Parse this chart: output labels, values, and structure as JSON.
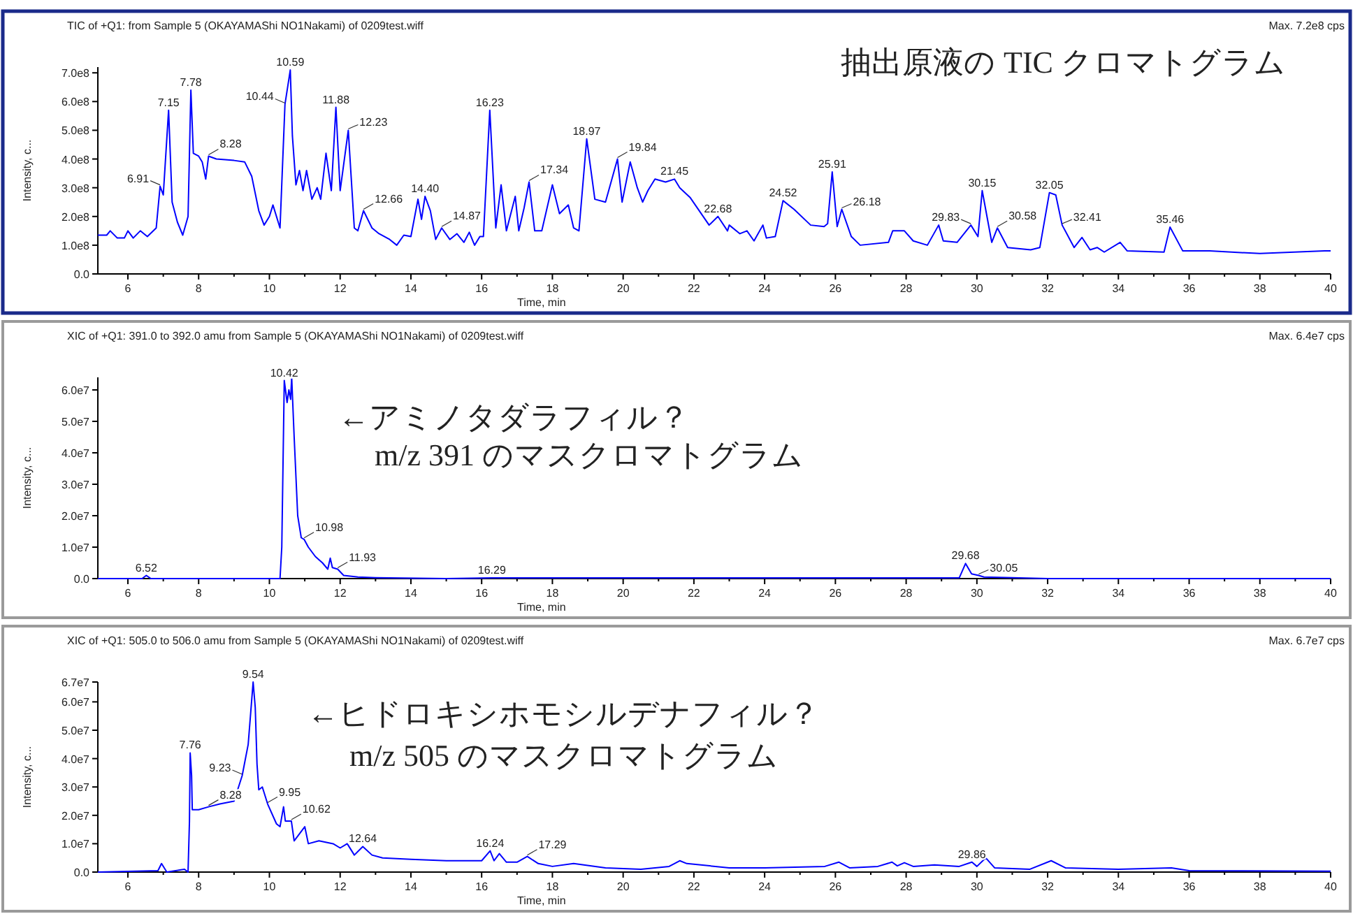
{
  "chart_data": [
    {
      "type": "line",
      "title": "TIC of +Q1: from Sample 5 (OKAYAMAShi NO1Nakami) of 0209test.wiff",
      "subtitle": "Max. 7.2e8 cps",
      "xlabel": "Time, min",
      "ylabel": "Intensity, c...",
      "xlim": [
        5.15,
        40
      ],
      "ylim": [
        0,
        720000000.0
      ],
      "xticks": [
        6,
        {
          "value": 7,
          "label": null
        },
        8,
        {
          "value": 9,
          "label": null
        },
        10,
        {
          "value": 11,
          "label": null
        },
        12,
        {
          "value": 13,
          "label": null
        },
        14,
        {
          "value": 15,
          "label": null
        },
        16,
        {
          "value": 17,
          "label": null
        },
        18,
        {
          "value": 19,
          "label": null
        },
        20,
        {
          "value": 21,
          "label": null
        },
        22,
        {
          "value": 23,
          "label": null
        },
        24,
        {
          "value": 25,
          "label": null
        },
        26,
        {
          "value": 27,
          "label": null
        },
        28,
        {
          "value": 29,
          "label": null
        },
        30,
        {
          "value": 31,
          "label": null
        },
        32,
        {
          "value": 33,
          "label": null
        },
        34,
        {
          "value": 35,
          "label": null
        },
        36,
        {
          "value": 37,
          "label": null
        },
        38,
        {
          "value": 39,
          "label": null
        },
        40
      ],
      "yticks": [
        {
          "value": 0,
          "label": "0.0"
        },
        {
          "value": 100000000.0,
          "label": "1.0e8"
        },
        {
          "value": 200000000.0,
          "label": "2.0e8"
        },
        {
          "value": 300000000.0,
          "label": "3.0e8"
        },
        {
          "value": 400000000.0,
          "label": "4.0e8"
        },
        {
          "value": 500000000.0,
          "label": "5.0e8"
        },
        {
          "value": 600000000.0,
          "label": "6.0e8"
        },
        {
          "value": 700000000.0,
          "label": "7.0e8"
        }
      ],
      "annotations": [
        "抽出原液の TIC クロマトグラム",
        {
          "text": "6.91",
          "x": 6.91,
          "y": 305000000.0
        },
        {
          "text": "7.15",
          "x": 7.15,
          "y": 570000000.0
        },
        {
          "text": "7.78",
          "x": 7.78,
          "y": 640000000.0
        },
        {
          "text": "8.28",
          "x": 8.28,
          "y": 410000000.0
        },
        {
          "text": "10.44",
          "x": 10.44,
          "y": 590000000.0
        },
        {
          "text": "10.59",
          "x": 10.59,
          "y": 710000000.0
        },
        {
          "text": "11.88",
          "x": 11.88,
          "y": 580000000.0
        },
        {
          "text": "12.23",
          "x": 12.23,
          "y": 500000000.0
        },
        {
          "text": "12.66",
          "x": 12.66,
          "y": 220000000.0
        },
        {
          "text": "14.40",
          "x": 14.4,
          "y": 270000000.0
        },
        {
          "text": "14.87",
          "x": 14.87,
          "y": 160000000.0
        },
        {
          "text": "16.23",
          "x": 16.23,
          "y": 570000000.0
        },
        {
          "text": "17.34",
          "x": 17.34,
          "y": 320000000.0
        },
        {
          "text": "18.97",
          "x": 18.97,
          "y": 470000000.0
        },
        {
          "text": "19.84",
          "x": 19.84,
          "y": 400000000.0
        },
        {
          "text": "21.45",
          "x": 21.45,
          "y": 330000000.0
        },
        {
          "text": "22.68",
          "x": 22.68,
          "y": 200000000.0
        },
        {
          "text": "24.52",
          "x": 24.52,
          "y": 255000000.0
        },
        {
          "text": "25.91",
          "x": 25.91,
          "y": 355000000.0
        },
        {
          "text": "26.18",
          "x": 26.18,
          "y": 225000000.0
        },
        {
          "text": "29.83",
          "x": 29.83,
          "y": 170000000.0
        },
        {
          "text": "30.15",
          "x": 30.15,
          "y": 290000000.0
        },
        {
          "text": "30.58",
          "x": 30.58,
          "y": 160000000.0
        },
        {
          "text": "32.05",
          "x": 32.05,
          "y": 283000000.0
        },
        {
          "text": "32.41",
          "x": 32.41,
          "y": 170000000.0
        },
        {
          "text": "35.46",
          "x": 35.46,
          "y": 163000000.0
        }
      ],
      "series": [
        {
          "color": "#0000ff",
          "x": [
            5.15,
            5.4,
            5.5,
            5.7,
            5.9,
            6.0,
            6.15,
            6.35,
            6.55,
            6.8,
            6.91,
            7.0,
            7.15,
            7.25,
            7.4,
            7.55,
            7.7,
            7.78,
            7.85,
            8.0,
            8.1,
            8.2,
            8.28,
            8.5,
            9.0,
            9.3,
            9.5,
            9.7,
            9.85,
            10.0,
            10.1,
            10.3,
            10.44,
            10.59,
            10.65,
            10.75,
            10.85,
            10.95,
            11.05,
            11.2,
            11.35,
            11.45,
            11.6,
            11.75,
            11.88,
            12.0,
            12.23,
            12.4,
            12.5,
            12.66,
            12.9,
            13.1,
            13.4,
            13.6,
            13.8,
            14.0,
            14.2,
            14.3,
            14.4,
            14.55,
            14.7,
            14.87,
            15.1,
            15.3,
            15.5,
            15.65,
            15.8,
            15.95,
            16.05,
            16.23,
            16.4,
            16.55,
            16.7,
            16.95,
            17.05,
            17.2,
            17.34,
            17.5,
            17.7,
            18.0,
            18.2,
            18.45,
            18.6,
            18.75,
            18.97,
            19.2,
            19.5,
            19.84,
            19.97,
            20.2,
            20.4,
            20.55,
            20.7,
            20.9,
            21.2,
            21.45,
            21.6,
            21.9,
            22.43,
            22.68,
            22.95,
            23.0,
            23.3,
            23.5,
            23.7,
            23.95,
            24.05,
            24.3,
            24.52,
            24.83,
            25.3,
            25.68,
            25.78,
            25.91,
            26.05,
            26.18,
            26.45,
            26.7,
            27.5,
            27.62,
            27.95,
            28.2,
            28.6,
            28.92,
            29.05,
            29.44,
            29.83,
            30.03,
            30.15,
            30.42,
            30.58,
            30.87,
            31.52,
            31.78,
            32.05,
            32.23,
            32.41,
            32.75,
            32.97,
            33.2,
            33.4,
            33.6,
            34.05,
            34.25,
            35.29,
            35.46,
            35.82,
            36.58,
            38.0,
            39.83,
            40
          ],
          "values": [
            135000000.0,
            135000000.0,
            150000000.0,
            125000000.0,
            125000000.0,
            150000000.0,
            125000000.0,
            150000000.0,
            130000000.0,
            160000000.0,
            305000000.0,
            275000000.0,
            570000000.0,
            250000000.0,
            180000000.0,
            135000000.0,
            200000000.0,
            640000000.0,
            420000000.0,
            410000000.0,
            390000000.0,
            330000000.0,
            410000000.0,
            400000000.0,
            395000000.0,
            390000000.0,
            340000000.0,
            220000000.0,
            170000000.0,
            200000000.0,
            240000000.0,
            160000000.0,
            590000000.0,
            710000000.0,
            480000000.0,
            310000000.0,
            360000000.0,
            290000000.0,
            360000000.0,
            260000000.0,
            300000000.0,
            260000000.0,
            420000000.0,
            290000000.0,
            580000000.0,
            290000000.0,
            500000000.0,
            160000000.0,
            150000000.0,
            220000000.0,
            160000000.0,
            140000000.0,
            120000000.0,
            100000000.0,
            135000000.0,
            130000000.0,
            260000000.0,
            190000000.0,
            270000000.0,
            220000000.0,
            120000000.0,
            160000000.0,
            120000000.0,
            140000000.0,
            110000000.0,
            145000000.0,
            100000000.0,
            130000000.0,
            130000000.0,
            570000000.0,
            160000000.0,
            310000000.0,
            150000000.0,
            270000000.0,
            150000000.0,
            230000000.0,
            320000000.0,
            150000000.0,
            150000000.0,
            310000000.0,
            210000000.0,
            240000000.0,
            160000000.0,
            150000000.0,
            470000000.0,
            260000000.0,
            250000000.0,
            400000000.0,
            250000000.0,
            390000000.0,
            300000000.0,
            250000000.0,
            290000000.0,
            330000000.0,
            320000000.0,
            330000000.0,
            300000000.0,
            265000000.0,
            170000000.0,
            200000000.0,
            150000000.0,
            170000000.0,
            140000000.0,
            150000000.0,
            115000000.0,
            170000000.0,
            125000000.0,
            130000000.0,
            255000000.0,
            225000000.0,
            170000000.0,
            165000000.0,
            175000000.0,
            355000000.0,
            165000000.0,
            225000000.0,
            130000000.0,
            100000000.0,
            110000000.0,
            150000000.0,
            150000000.0,
            115000000.0,
            100000000.0,
            170000000.0,
            115000000.0,
            110000000.0,
            170000000.0,
            130000000.0,
            290000000.0,
            110000000.0,
            160000000.0,
            92000000.0,
            84000000.0,
            92000000.0,
            283000000.0,
            275000000.0,
            170000000.0,
            92000000.0,
            127000000.0,
            84000000.0,
            92000000.0,
            76000000.0,
            110000000.0,
            80000000.0,
            76000000.0,
            163000000.0,
            80000000.0,
            80000000.0,
            71000000.0,
            80000000.0,
            80000000.0
          ]
        }
      ]
    },
    {
      "type": "line",
      "title": "XIC of +Q1: 391.0 to 392.0 amu from Sample 5 (OKAYAMAShi NO1Nakami) of 0209test.wiff",
      "subtitle": "Max. 6.4e7 cps",
      "xlabel": "Time, min",
      "ylabel": "Intensity, c...",
      "xlim": [
        5.15,
        40
      ],
      "ylim": [
        0,
        64000000.0
      ],
      "xticks": [
        6,
        {
          "value": 7,
          "label": null
        },
        8,
        {
          "value": 9,
          "label": null
        },
        10,
        {
          "value": 11,
          "label": null
        },
        12,
        {
          "value": 13,
          "label": null
        },
        14,
        {
          "value": 15,
          "label": null
        },
        16,
        {
          "value": 17,
          "label": null
        },
        18,
        {
          "value": 19,
          "label": null
        },
        20,
        {
          "value": 21,
          "label": null
        },
        22,
        {
          "value": 23,
          "label": null
        },
        24,
        {
          "value": 25,
          "label": null
        },
        26,
        {
          "value": 27,
          "label": null
        },
        28,
        {
          "value": 29,
          "label": null
        },
        30,
        {
          "value": 31,
          "label": null
        },
        32,
        {
          "value": 33,
          "label": null
        },
        34,
        {
          "value": 35,
          "label": null
        },
        36,
        {
          "value": 37,
          "label": null
        },
        38,
        {
          "value": 39,
          "label": null
        },
        40
      ],
      "yticks": [
        {
          "value": 0,
          "label": "0.0"
        },
        {
          "value": 10000000.0,
          "label": "1.0e7"
        },
        {
          "value": 20000000.0,
          "label": "2.0e7"
        },
        {
          "value": 30000000.0,
          "label": "3.0e7"
        },
        {
          "value": 40000000.0,
          "label": "4.0e7"
        },
        {
          "value": 50000000.0,
          "label": "5.0e7"
        },
        {
          "value": 60000000.0,
          "label": "6.0e7"
        }
      ],
      "annotations": [
        "←アミノタダラフィル？",
        "m/z 391 のマスクロマトグラム",
        {
          "text": "6.52",
          "x": 6.52,
          "y": 1000000.0
        },
        {
          "text": "10.42",
          "x": 10.42,
          "y": 63000000.0
        },
        {
          "text": "10.98",
          "x": 10.98,
          "y": 12500000.0
        },
        {
          "text": "11.93",
          "x": 11.93,
          "y": 3000000.0
        },
        {
          "text": "16.29",
          "x": 16.29,
          "y": 200000.0
        },
        {
          "text": "29.68",
          "x": 29.68,
          "y": 4800000.0
        },
        {
          "text": "30.05",
          "x": 30.05,
          "y": 1000000.0
        }
      ],
      "series": [
        {
          "color": "#0000ff",
          "x": [
            5.15,
            6.4,
            6.52,
            6.65,
            10.3,
            10.35,
            10.42,
            10.5,
            10.55,
            10.6,
            10.63,
            10.7,
            10.8,
            10.9,
            10.98,
            11.1,
            11.3,
            11.5,
            11.65,
            11.72,
            11.78,
            11.93,
            12.1,
            12.5,
            13.0,
            15.0,
            16.29,
            29.5,
            29.68,
            29.85,
            30.05,
            30.2,
            31.0,
            32.0,
            40
          ],
          "values": [
            0,
            0,
            1000000.0,
            0,
            0,
            10000000.0,
            63000000.0,
            56000000.0,
            60000000.0,
            57000000.0,
            64000000.0,
            45000000.0,
            20000000.0,
            13000000.0,
            12500000.0,
            10000000.0,
            7000000.0,
            5000000.0,
            3000000.0,
            6500000.0,
            3500000.0,
            3000000.0,
            1000000.0,
            500000.0,
            300000.0,
            0,
            200000.0,
            200000.0,
            4800000.0,
            1500000.0,
            1000000.0,
            500000.0,
            300000.0,
            0,
            0
          ]
        }
      ]
    },
    {
      "type": "line",
      "title": "XIC of +Q1: 505.0 to 506.0 amu from Sample 5 (OKAYAMAShi NO1Nakami) of 0209test.wiff",
      "subtitle": "Max. 6.7e7 cps",
      "xlabel": "Time, min",
      "ylabel": "Intensity, c...",
      "xlim": [
        5.15,
        40
      ],
      "ylim": [
        0,
        67000000.0
      ],
      "xticks": [
        6,
        {
          "value": 7,
          "label": null
        },
        8,
        {
          "value": 9,
          "label": null
        },
        10,
        {
          "value": 11,
          "label": null
        },
        12,
        {
          "value": 13,
          "label": null
        },
        14,
        {
          "value": 15,
          "label": null
        },
        16,
        {
          "value": 17,
          "label": null
        },
        18,
        {
          "value": 19,
          "label": null
        },
        20,
        {
          "value": 21,
          "label": null
        },
        22,
        {
          "value": 23,
          "label": null
        },
        24,
        {
          "value": 25,
          "label": null
        },
        26,
        {
          "value": 27,
          "label": null
        },
        28,
        {
          "value": 29,
          "label": null
        },
        30,
        {
          "value": 31,
          "label": null
        },
        32,
        {
          "value": 33,
          "label": null
        },
        34,
        {
          "value": 35,
          "label": null
        },
        36,
        {
          "value": 37,
          "label": null
        },
        38,
        {
          "value": 39,
          "label": null
        },
        40
      ],
      "yticks": [
        {
          "value": 0,
          "label": "0.0"
        },
        {
          "value": 10000000.0,
          "label": "1.0e7"
        },
        {
          "value": 20000000.0,
          "label": "2.0e7"
        },
        {
          "value": 30000000.0,
          "label": "3.0e7"
        },
        {
          "value": 40000000.0,
          "label": "4.0e7"
        },
        {
          "value": 50000000.0,
          "label": "5.0e7"
        },
        {
          "value": 60000000.0,
          "label": "6.0e7"
        },
        {
          "value": 67000000.0,
          "label": "6.7e7"
        }
      ],
      "annotations": [
        "←ヒドロキシホモシルデナフィル？",
        "m/z 505 のマスクロマトグラム",
        {
          "text": "7.76",
          "x": 7.76,
          "y": 42000000.0
        },
        {
          "text": "8.28",
          "x": 8.28,
          "y": 23000000.0
        },
        {
          "text": "9.23",
          "x": 9.23,
          "y": 34000000.0
        },
        {
          "text": "9.54",
          "x": 9.54,
          "y": 67000000.0
        },
        {
          "text": "9.95",
          "x": 9.95,
          "y": 24000000.0
        },
        {
          "text": "10.62",
          "x": 10.62,
          "y": 18000000.0
        },
        {
          "text": "12.64",
          "x": 12.64,
          "y": 9000000.0
        },
        {
          "text": "16.24",
          "x": 16.24,
          "y": 7500000.0
        },
        {
          "text": "17.29",
          "x": 17.29,
          "y": 5500000.0
        },
        {
          "text": "29.86",
          "x": 29.86,
          "y": 3500000.0
        }
      ],
      "series": [
        {
          "color": "#0000ff",
          "x": [
            5.15,
            6.85,
            6.95,
            7.1,
            7.6,
            7.7,
            7.74,
            7.76,
            7.8,
            7.82,
            8.0,
            8.28,
            8.6,
            9.0,
            9.23,
            9.4,
            9.54,
            9.6,
            9.65,
            9.7,
            9.8,
            9.95,
            10.2,
            10.3,
            10.4,
            10.45,
            10.62,
            10.7,
            11.0,
            11.1,
            11.4,
            11.8,
            12.0,
            12.2,
            12.4,
            12.64,
            12.9,
            13.2,
            14.0,
            15.0,
            16.0,
            16.24,
            16.35,
            16.5,
            16.7,
            17.0,
            17.29,
            17.6,
            18.0,
            18.6,
            19.5,
            20.5,
            21.3,
            21.6,
            21.8,
            23.0,
            24.0,
            25.7,
            26.1,
            26.4,
            27.2,
            27.6,
            27.75,
            27.95,
            28.2,
            28.8,
            29.5,
            29.86,
            30.0,
            30.25,
            30.5,
            31.5,
            32.1,
            32.5,
            34.0,
            35.5,
            36.0,
            40
          ],
          "values": [
            0,
            500000.0,
            3000000.0,
            0,
            1000000.0,
            0,
            18000000.0,
            42000000.0,
            34000000.0,
            22000000.0,
            22000000.0,
            23000000.0,
            24000000.0,
            25000000.0,
            34000000.0,
            45000000.0,
            67000000.0,
            58000000.0,
            38000000.0,
            29000000.0,
            30000000.0,
            24000000.0,
            17000000.0,
            16000000.0,
            23000000.0,
            18000000.0,
            18000000.0,
            11000000.0,
            16000000.0,
            10000000.0,
            11000000.0,
            10000000.0,
            8500000.0,
            10000000.0,
            6000000.0,
            9000000.0,
            6000000.0,
            5000000.0,
            4500000.0,
            4000000.0,
            4000000.0,
            7500000.0,
            4000000.0,
            6500000.0,
            3500000.0,
            3500000.0,
            5500000.0,
            3000000.0,
            2000000.0,
            3000000.0,
            1500000.0,
            1000000.0,
            2000000.0,
            4000000.0,
            3000000.0,
            1500000.0,
            1500000.0,
            2000000.0,
            3500000.0,
            1500000.0,
            2000000.0,
            3500000.0,
            2200000.0,
            3300000.0,
            2000000.0,
            2500000.0,
            2000000.0,
            3500000.0,
            2000000.0,
            5000000.0,
            1500000.0,
            1000000.0,
            4000000.0,
            1500000.0,
            1000000.0,
            1500000.0,
            500000.0,
            300000.0
          ]
        }
      ]
    }
  ]
}
